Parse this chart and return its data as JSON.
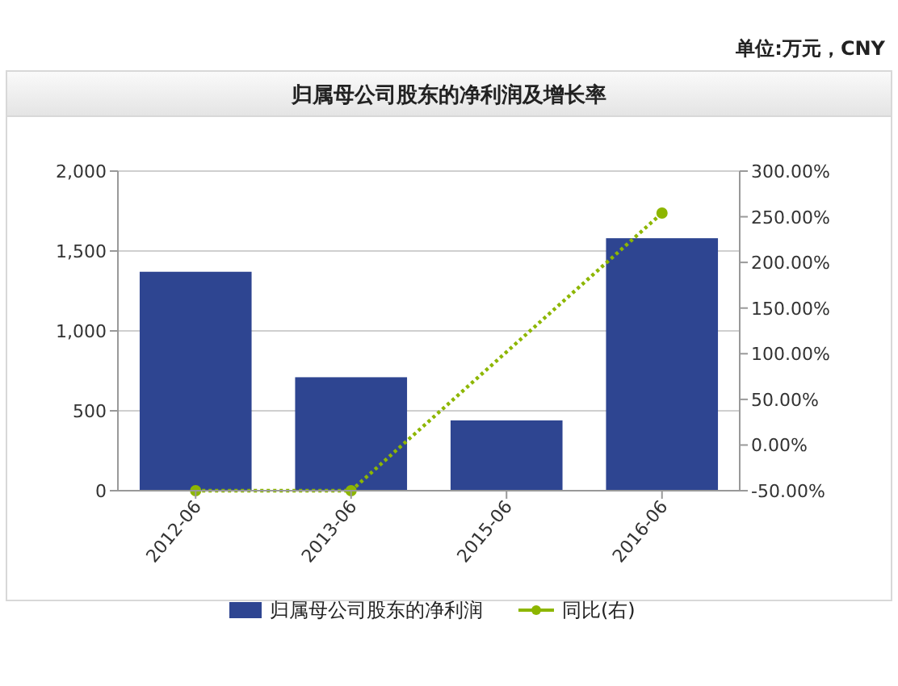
{
  "chart_data": {
    "type": "bar",
    "title": "归属母公司股东的净利润及增长率",
    "annotations": [
      "单位:万元，CNY"
    ],
    "categories": [
      "2012-06",
      "2013-06",
      "2015-06",
      "2016-06"
    ],
    "series": [
      {
        "name": "归属母公司股东的净利润",
        "color": "#2e4591",
        "values": [
          1370,
          710,
          440,
          1580
        ]
      },
      {
        "name": "同比(右)",
        "type": "line",
        "axis": "y2",
        "color": "#8db600",
        "marker": "circle",
        "line_style": "dotted",
        "values": [
          -50,
          -50,
          null,
          254
        ]
      }
    ],
    "ylim": [
      0,
      2000
    ],
    "yticks": [
      0,
      500,
      {
        "value": 1000,
        "label": "1,000"
      },
      {
        "value": 1500,
        "label": "1,500"
      },
      {
        "value": 2000,
        "label": "2,000"
      }
    ],
    "y2lim": [
      -50,
      300
    ],
    "y2ticks": [
      {
        "value": -50,
        "label": "-50.00%"
      },
      {
        "value": 0,
        "label": "0.00%"
      },
      {
        "value": 50,
        "label": "50.00%"
      },
      {
        "value": 100,
        "label": "100.00%"
      },
      {
        "value": 150,
        "label": "150.00%"
      },
      {
        "value": 200,
        "label": "200.00%"
      },
      {
        "value": 250,
        "label": "250.00%"
      },
      {
        "value": 300,
        "label": "300.00%"
      }
    ],
    "grid": "y",
    "legend": "bottom"
  }
}
